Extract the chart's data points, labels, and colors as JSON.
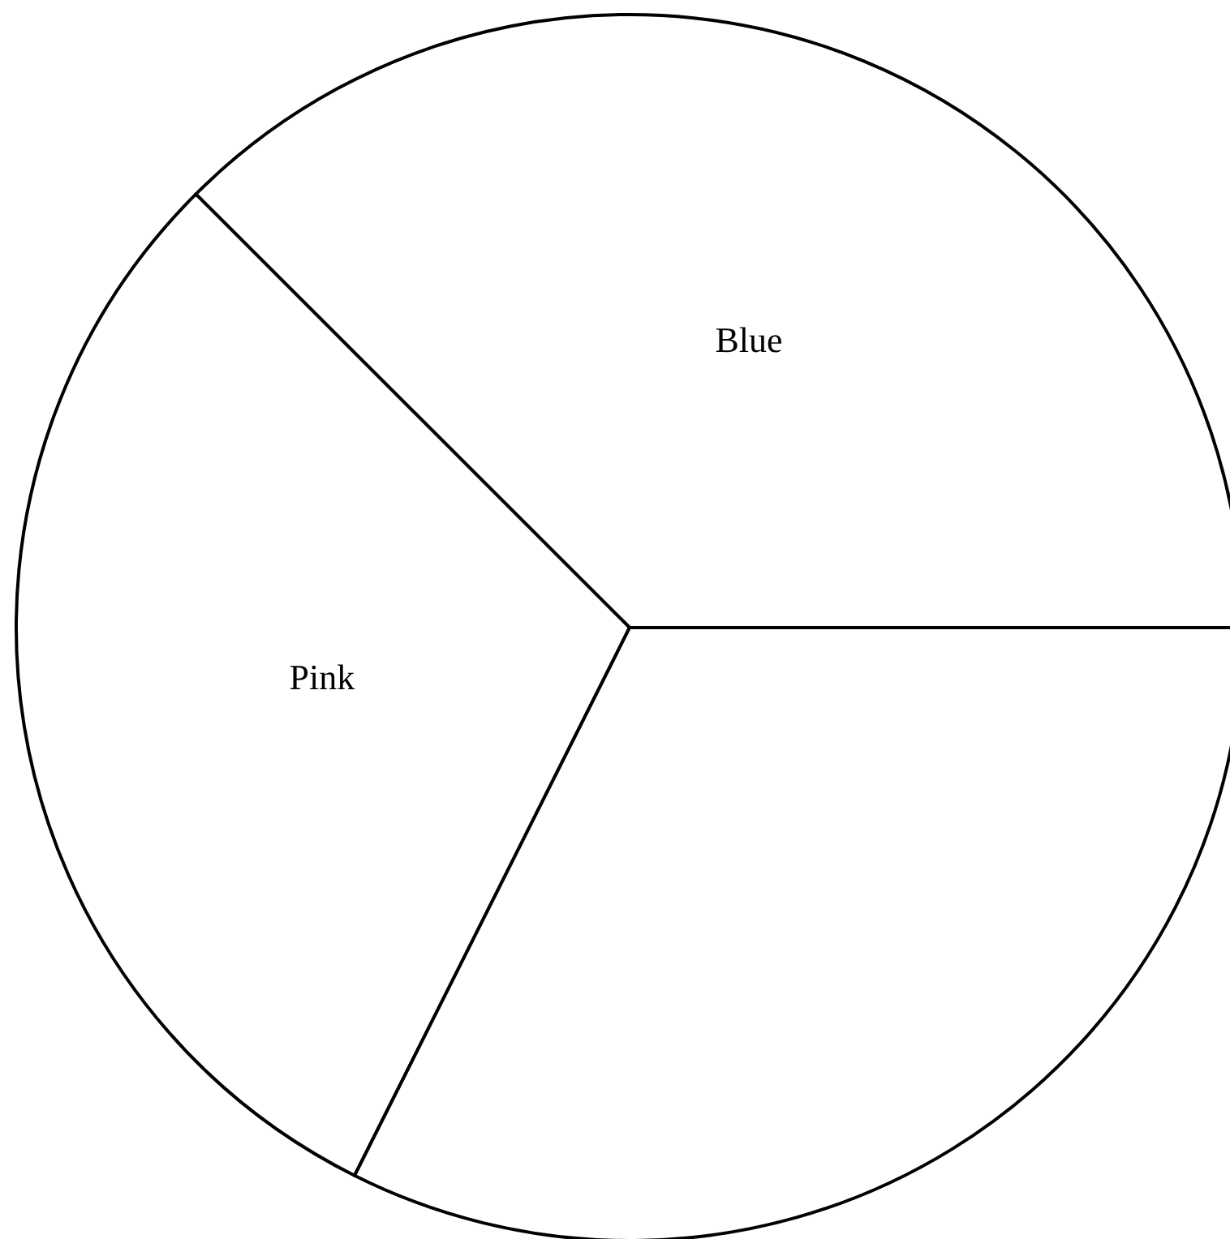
{
  "chart_data": {
    "type": "pie",
    "categories": [
      "Blue",
      "Pink",
      null
    ],
    "values": [
      37.5,
      30.1,
      32.4
    ],
    "colors": [
      "#ffffff",
      "#ffffff",
      "#ffffff"
    ]
  }
}
